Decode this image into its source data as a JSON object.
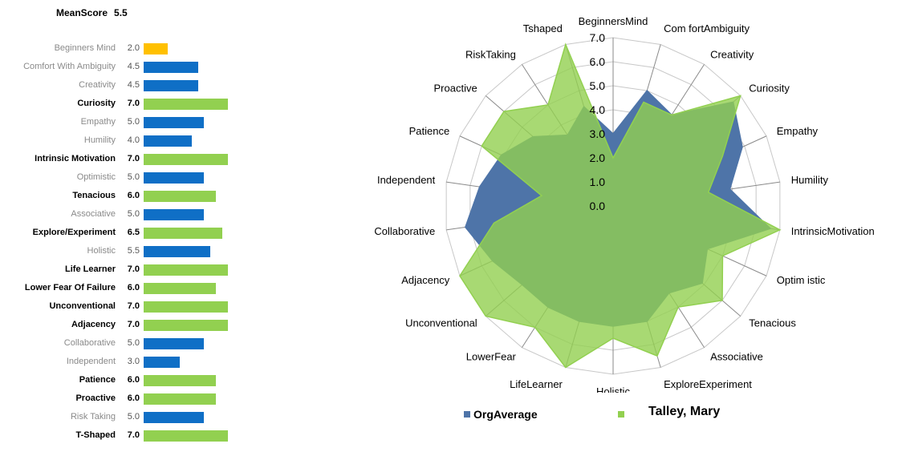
{
  "mean_score": {
    "label": "MeanScore",
    "value": "5.5"
  },
  "colors": {
    "blue": "#0f6fc6",
    "green": "#92d050",
    "yellow": "#ffc000",
    "org_series": "#4e74a8",
    "person_series": "#92d050"
  },
  "bars": [
    {
      "label": "Beginners Mind",
      "value": 2.0,
      "value_text": "2.0",
      "bold": false,
      "color": "yellow"
    },
    {
      "label": "Comfort With Ambiguity",
      "value": 4.5,
      "value_text": "4.5",
      "bold": false,
      "color": "blue"
    },
    {
      "label": "Creativity",
      "value": 4.5,
      "value_text": "4.5",
      "bold": false,
      "color": "blue"
    },
    {
      "label": "Curiosity",
      "value": 7.0,
      "value_text": "7.0",
      "bold": true,
      "color": "green"
    },
    {
      "label": "Empathy",
      "value": 5.0,
      "value_text": "5.0",
      "bold": false,
      "color": "blue"
    },
    {
      "label": "Humility",
      "value": 4.0,
      "value_text": "4.0",
      "bold": false,
      "color": "blue"
    },
    {
      "label": "Intrinsic Motivation",
      "value": 7.0,
      "value_text": "7.0",
      "bold": true,
      "color": "green"
    },
    {
      "label": "Optimistic",
      "value": 5.0,
      "value_text": "5.0",
      "bold": false,
      "color": "blue"
    },
    {
      "label": "Tenacious",
      "value": 6.0,
      "value_text": "6.0",
      "bold": true,
      "color": "green"
    },
    {
      "label": "Associative",
      "value": 5.0,
      "value_text": "5.0",
      "bold": false,
      "color": "blue"
    },
    {
      "label": "Explore/Experiment",
      "value": 6.5,
      "value_text": "6.5",
      "bold": true,
      "color": "green"
    },
    {
      "label": "Holistic",
      "value": 5.5,
      "value_text": "5.5",
      "bold": false,
      "color": "blue"
    },
    {
      "label": "Life Learner",
      "value": 7.0,
      "value_text": "7.0",
      "bold": true,
      "color": "green"
    },
    {
      "label": "Lower Fear Of Failure",
      "value": 6.0,
      "value_text": "6.0",
      "bold": true,
      "color": "green"
    },
    {
      "label": "Unconventional",
      "value": 7.0,
      "value_text": "7.0",
      "bold": true,
      "color": "green"
    },
    {
      "label": "Adjacency",
      "value": 7.0,
      "value_text": "7.0",
      "bold": true,
      "color": "green"
    },
    {
      "label": "Collaborative",
      "value": 5.0,
      "value_text": "5.0",
      "bold": false,
      "color": "blue"
    },
    {
      "label": "Independent",
      "value": 3.0,
      "value_text": "3.0",
      "bold": false,
      "color": "blue"
    },
    {
      "label": "Patience",
      "value": 6.0,
      "value_text": "6.0",
      "bold": true,
      "color": "green"
    },
    {
      "label": "Proactive",
      "value": 6.0,
      "value_text": "6.0",
      "bold": true,
      "color": "green"
    },
    {
      "label": "Risk Taking",
      "value": 5.0,
      "value_text": "5.0",
      "bold": false,
      "color": "blue"
    },
    {
      "label": "T-Shaped",
      "value": 7.0,
      "value_text": "7.0",
      "bold": true,
      "color": "green"
    }
  ],
  "chart_data": {
    "type": "radar",
    "categories": [
      "BeginnersMind",
      "Com fortAmbiguity",
      "Creativity",
      "Curiosity",
      "Empathy",
      "Humility",
      "IntrinsicMotivation",
      "Optim istic",
      "Tenacious",
      "Associative",
      "ExploreExperiment",
      "Holistic",
      "LifeLearner",
      "LowerFear",
      "Unconventional",
      "Adjacency",
      "Collaborative",
      "Independent",
      "Patience",
      "Proactive",
      "RiskTaking",
      "Tshaped"
    ],
    "ticks": [
      "0.0",
      "1.0",
      "2.0",
      "3.0",
      "4.0",
      "5.0",
      "6.0",
      "7.0"
    ],
    "rlim": [
      0,
      7
    ],
    "grid": true,
    "legend_position": "bottom",
    "series": [
      {
        "name": "OrgAverage",
        "color": "org_series",
        "values": [
          3.0,
          5.0,
          4.5,
          6.6,
          5.9,
          4.9,
          6.6,
          4.3,
          4.9,
          4.3,
          5.0,
          5.0,
          5.0,
          5.0,
          5.0,
          5.5,
          6.2,
          5.6,
          5.1,
          4.4,
          3.5,
          4.3
        ]
      },
      {
        "name": "Talley, Mary",
        "color": "person_series",
        "values": [
          2.0,
          4.5,
          4.5,
          7.0,
          5.0,
          4.0,
          7.0,
          5.0,
          6.0,
          5.0,
          6.5,
          5.5,
          7.0,
          6.0,
          7.0,
          7.0,
          5.0,
          3.0,
          6.0,
          6.0,
          5.0,
          7.0
        ]
      }
    ]
  }
}
